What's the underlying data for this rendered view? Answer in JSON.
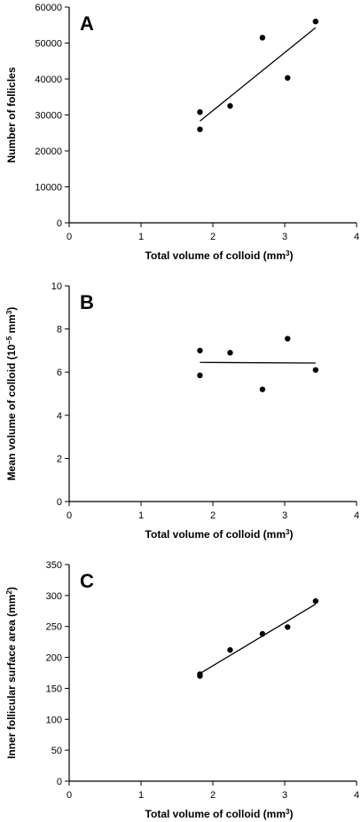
{
  "chart_data": [
    {
      "type": "scatter",
      "panel_label": "A",
      "xlabel": "Total volume of colloid (mm",
      "xlabel_sup": "3",
      "xlabel_end": ")",
      "ylabel": "Number of follicles",
      "xlim": [
        0,
        4
      ],
      "ylim": [
        0,
        60000
      ],
      "xticks": [
        "0",
        "1",
        "2",
        "3",
        "4"
      ],
      "yticks": [
        "0",
        "10000",
        "20000",
        "30000",
        "40000",
        "50000",
        "60000"
      ],
      "points": [
        {
          "x": 1.82,
          "y": 30800
        },
        {
          "x": 1.82,
          "y": 26000
        },
        {
          "x": 2.24,
          "y": 32500
        },
        {
          "x": 2.69,
          "y": 51500
        },
        {
          "x": 3.04,
          "y": 40300
        },
        {
          "x": 3.43,
          "y": 56000
        }
      ],
      "fit_line": {
        "x": [
          1.82,
          3.43
        ],
        "y": [
          28300,
          54300
        ]
      }
    },
    {
      "type": "scatter",
      "panel_label": "B",
      "xlabel": "Total volume of colloid (mm",
      "xlabel_sup": "3",
      "xlabel_end": ")",
      "ylabel": "Mean volume of colloid (10",
      "ylabel_sup": "−5",
      "ylabel_mid": " mm",
      "ylabel_sup2": "3",
      "ylabel_end": ")",
      "xlim": [
        0,
        4
      ],
      "ylim": [
        0,
        10
      ],
      "xticks": [
        "0",
        "1",
        "2",
        "3",
        "4"
      ],
      "yticks": [
        "0",
        "2",
        "4",
        "6",
        "8",
        "10"
      ],
      "points": [
        {
          "x": 1.82,
          "y": 7.0
        },
        {
          "x": 1.82,
          "y": 5.85
        },
        {
          "x": 2.24,
          "y": 6.9
        },
        {
          "x": 2.69,
          "y": 5.2
        },
        {
          "x": 3.04,
          "y": 7.55
        },
        {
          "x": 3.43,
          "y": 6.1
        }
      ],
      "fit_line": {
        "x": [
          1.82,
          3.43
        ],
        "y": [
          6.45,
          6.42
        ]
      }
    },
    {
      "type": "scatter",
      "panel_label": "C",
      "xlabel": "Total volume of colloid (mm",
      "xlabel_sup": "3",
      "xlabel_end": ")",
      "ylabel": "Inner follicular surface area (mm",
      "ylabel_sup": "2",
      "ylabel_end": ")",
      "xlim": [
        0,
        4
      ],
      "ylim": [
        0,
        350
      ],
      "xticks": [
        "0",
        "1",
        "2",
        "3",
        "4"
      ],
      "yticks": [
        "0",
        "50",
        "100",
        "150",
        "200",
        "250",
        "300",
        "350"
      ],
      "points": [
        {
          "x": 1.82,
          "y": 173
        },
        {
          "x": 1.82,
          "y": 170
        },
        {
          "x": 2.24,
          "y": 212
        },
        {
          "x": 2.69,
          "y": 238
        },
        {
          "x": 3.04,
          "y": 249
        },
        {
          "x": 3.43,
          "y": 291
        }
      ],
      "fit_line": {
        "x": [
          1.82,
          3.43
        ],
        "y": [
          174,
          286
        ]
      }
    }
  ]
}
